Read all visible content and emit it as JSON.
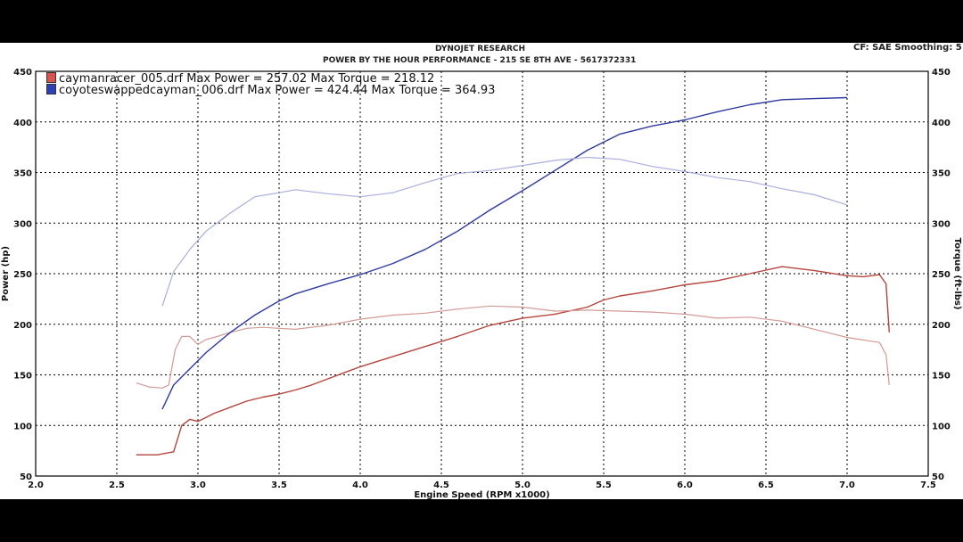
{
  "header": {
    "company": "DYNOJET RESEARCH",
    "shop": "POWER BY THE HOUR PERFORMANCE - 215 SE 8TH AVE - 5617372331",
    "settings": "CF: SAE  Smoothing: 5"
  },
  "legend": [
    {
      "file": "caymanracer_005.drf",
      "text": "caymanracer_005.drf Max Power = 257.02     Max Torque = 218.12",
      "color": "#d9534f"
    },
    {
      "file": "coyoteswappedcayman_006.drf",
      "text": "coyoteswappedcayman_006.drf Max Power = 424.44     Max Torque = 364.93",
      "color": "#2f3fb8"
    }
  ],
  "chart_data": {
    "type": "line",
    "title": "POWER BY THE HOUR PERFORMANCE - 215 SE 8TH AVE - 5617372331",
    "xlabel": "Engine Speed (RPM x1000)",
    "ylabel": "Power (hp)",
    "y2label": "Torque (ft-lbs)",
    "xlim": [
      2.0,
      7.5
    ],
    "ylim": [
      50,
      450
    ],
    "xticks": [
      "2.0",
      "2.5",
      "3.0",
      "3.5",
      "4.0",
      "4.5",
      "5.0",
      "5.5",
      "6.0",
      "6.5",
      "7.0",
      "7.5"
    ],
    "yticks": [
      "50",
      "100",
      "150",
      "200",
      "250",
      "300",
      "350",
      "400",
      "450"
    ],
    "grid": true,
    "legend_position": "top-left",
    "series": [
      {
        "name": "caymanracer_005.drf",
        "quantity": "power",
        "color": "#b5443c",
        "width": 1.4,
        "x": [
          2.62,
          2.75,
          2.85,
          2.9,
          2.95,
          3.0,
          3.05,
          3.1,
          3.2,
          3.3,
          3.4,
          3.5,
          3.6,
          3.7,
          3.8,
          3.9,
          4.0,
          4.2,
          4.4,
          4.6,
          4.8,
          5.0,
          5.2,
          5.4,
          5.5,
          5.6,
          5.8,
          6.0,
          6.2,
          6.4,
          6.6,
          6.8,
          7.0,
          7.1,
          7.2,
          7.24,
          7.26
        ],
        "y": [
          71,
          71,
          74,
          100,
          106,
          104,
          108,
          112,
          118,
          124,
          128,
          131,
          135,
          140,
          146,
          152,
          158,
          168,
          178,
          188,
          199,
          206,
          210,
          217,
          224,
          228,
          233,
          239,
          243,
          250,
          257,
          253,
          248,
          247,
          249,
          240,
          192
        ]
      },
      {
        "name": "caymanracer_005.drf",
        "quantity": "torque",
        "color": "#d49a96",
        "width": 1.2,
        "x": [
          2.62,
          2.7,
          2.78,
          2.82,
          2.86,
          2.9,
          2.95,
          3.0,
          3.05,
          3.1,
          3.2,
          3.3,
          3.4,
          3.5,
          3.6,
          3.8,
          4.0,
          4.2,
          4.4,
          4.6,
          4.8,
          5.0,
          5.2,
          5.4,
          5.6,
          5.8,
          6.0,
          6.2,
          6.4,
          6.6,
          6.8,
          7.0,
          7.2,
          7.24,
          7.26
        ],
        "y": [
          142,
          138,
          137,
          140,
          175,
          188,
          188,
          180,
          185,
          187,
          192,
          196,
          197,
          196,
          195,
          199,
          205,
          209,
          211,
          215,
          218,
          217,
          213,
          214,
          213,
          212,
          210,
          206,
          207,
          203,
          195,
          187,
          182,
          170,
          140
        ]
      },
      {
        "name": "coyoteswappedcayman_006.drf",
        "quantity": "power",
        "color": "#2e3aa0",
        "width": 1.4,
        "x": [
          2.78,
          2.85,
          2.95,
          3.05,
          3.2,
          3.35,
          3.5,
          3.6,
          3.8,
          4.0,
          4.2,
          4.4,
          4.6,
          4.8,
          5.0,
          5.2,
          5.4,
          5.6,
          5.8,
          6.0,
          6.2,
          6.4,
          6.6,
          6.8,
          7.0
        ],
        "y": [
          116,
          140,
          156,
          172,
          192,
          209,
          223,
          230,
          240,
          249,
          260,
          274,
          292,
          313,
          332,
          352,
          372,
          388,
          396,
          402,
          410,
          417,
          422,
          423,
          424
        ]
      },
      {
        "name": "coyoteswappedcayman_006.drf",
        "quantity": "torque",
        "color": "#a8aee0",
        "width": 1.2,
        "x": [
          2.78,
          2.85,
          2.95,
          3.05,
          3.2,
          3.35,
          3.5,
          3.6,
          3.8,
          4.0,
          4.2,
          4.4,
          4.6,
          4.8,
          5.0,
          5.2,
          5.4,
          5.6,
          5.8,
          6.0,
          6.2,
          6.4,
          6.6,
          6.8,
          7.0
        ],
        "y": [
          218,
          252,
          274,
          292,
          310,
          326,
          330,
          333,
          329,
          326,
          330,
          340,
          349,
          352,
          357,
          362,
          365,
          363,
          356,
          351,
          345,
          341,
          334,
          328,
          318
        ]
      }
    ]
  }
}
